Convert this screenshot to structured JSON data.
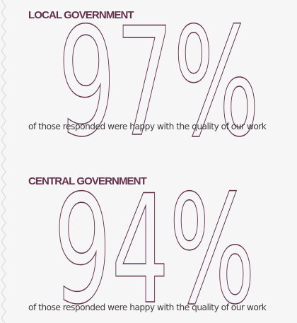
{
  "accent_color": "#64304e",
  "sections": [
    {
      "title": "LOCAL GOVERNMENT",
      "percentage": "97%",
      "percentage_value": 97,
      "caption": "of those responded were happy with the quality of our work"
    },
    {
      "title": "CENTRAL GOVERNMENT",
      "percentage": "94%",
      "percentage_value": 94,
      "caption": "of those responded were happy with the quality of our work"
    }
  ],
  "decoration": {
    "left_edge": "zigzag-border"
  }
}
